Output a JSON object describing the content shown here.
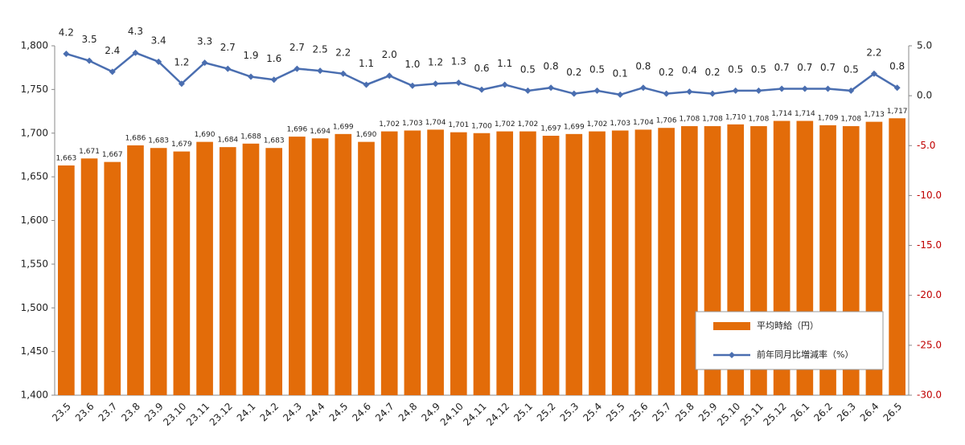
{
  "chart_data": {
    "type": "bar-line",
    "categories": [
      "23.5",
      "23.6",
      "23.7",
      "23.8",
      "23.9",
      "23.10",
      "23.11",
      "23.12",
      "24.1",
      "24.2",
      "24.3",
      "24.4",
      "24.5",
      "24.6",
      "24.7",
      "24.8",
      "24.9",
      "24.10",
      "24.11",
      "24.12",
      "25.1",
      "25.2",
      "25.3",
      "25.4",
      "25.5",
      "25.6",
      "25.7",
      "25.8",
      "25.9",
      "25.10",
      "25.11",
      "25.12",
      "26.1",
      "26.2",
      "26.3",
      "26.4",
      "26.5"
    ],
    "series": [
      {
        "name": "平均時給（円）",
        "type": "bar",
        "color": "#e36c09",
        "values": [
          1663,
          1671,
          1667,
          1686,
          1683,
          1679,
          1690,
          1684,
          1688,
          1683,
          1696,
          1694,
          1699,
          1690,
          1702,
          1703,
          1704,
          1701,
          1700,
          1702,
          1702,
          1697,
          1699,
          1702,
          1703,
          1704,
          1706,
          1708,
          1708,
          1710,
          1708,
          1714,
          1714,
          1709,
          1708,
          1713,
          1717
        ],
        "value_labels": [
          "1,663",
          "1,671",
          "1,667",
          "1,686",
          "1,683",
          "1,679",
          "1,690",
          "1,684",
          "1,688",
          "1,683",
          "1,696",
          "1,694",
          "1,699",
          "1,690",
          "1,702",
          "1,703",
          "1,704",
          "1,701",
          "1,700",
          "1,702",
          "1,702",
          "1,697",
          "1,699",
          "1,702",
          "1,703",
          "1,704",
          "1,706",
          "1,708",
          "1,708",
          "1,710",
          "1,708",
          "1,714",
          "1,714",
          "1,709",
          "1,708",
          "1,713",
          "1,717"
        ]
      },
      {
        "name": "前年同月比増減率（%）",
        "type": "line",
        "axis": "y2",
        "color": "#4a6eb0",
        "values": [
          4.2,
          3.5,
          2.4,
          4.3,
          3.4,
          1.2,
          3.3,
          2.7,
          1.9,
          1.6,
          2.7,
          2.5,
          2.2,
          1.1,
          2.0,
          1.0,
          1.2,
          1.3,
          0.6,
          1.1,
          0.5,
          0.8,
          0.2,
          0.5,
          0.1,
          0.8,
          0.2,
          0.4,
          0.2,
          0.5,
          0.5,
          0.7,
          0.7,
          0.7,
          0.5,
          2.2,
          0.8
        ],
        "value_labels": [
          "4.2",
          "3.5",
          "2.4",
          "4.3",
          "3.4",
          "1.2",
          "3.3",
          "2.7",
          "1.9",
          "1.6",
          "2.7",
          "2.5",
          "2.2",
          "1.1",
          "2.0",
          "1.0",
          "1.2",
          "1.3",
          "0.6",
          "1.1",
          "0.5",
          "0.8",
          "0.2",
          "0.5",
          "0.1",
          "0.8",
          "0.2",
          "0.4",
          "0.2",
          "0.5",
          "0.5",
          "0.7",
          "0.7",
          "0.7",
          "0.5",
          "2.2",
          "0.8"
        ]
      }
    ],
    "ylim": [
      1400,
      1800
    ],
    "yticks": [
      {
        "value": 1400,
        "label": "1,400"
      },
      {
        "value": 1450,
        "label": "1,450"
      },
      {
        "value": 1500,
        "label": "1,500"
      },
      {
        "value": 1550,
        "label": "1,550"
      },
      {
        "value": 1600,
        "label": "1,600"
      },
      {
        "value": 1650,
        "label": "1,650"
      },
      {
        "value": 1700,
        "label": "1,700"
      },
      {
        "value": 1750,
        "label": "1,750"
      },
      {
        "value": 1800,
        "label": "1,800"
      }
    ],
    "y2lim": [
      -30,
      5
    ],
    "y2ticks": [
      {
        "value": -30,
        "label": "-30.0"
      },
      {
        "value": -25,
        "label": "-25.0"
      },
      {
        "value": -20,
        "label": "-20.0"
      },
      {
        "value": -15,
        "label": "-15.0"
      },
      {
        "value": -10,
        "label": "-10.0"
      },
      {
        "value": -5,
        "label": "-5.0"
      },
      {
        "value": 0,
        "label": "0.0"
      },
      {
        "value": 5,
        "label": "5.0"
      }
    ],
    "negative_tick_color": "#c00000",
    "legend": "lower right"
  }
}
